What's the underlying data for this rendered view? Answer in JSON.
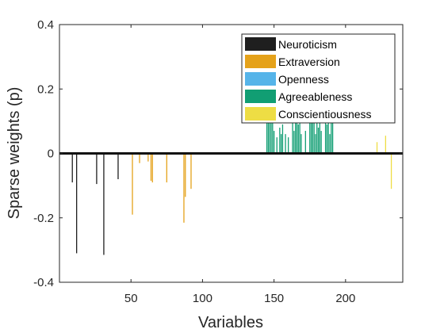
{
  "chart_data": {
    "type": "bar",
    "title": "",
    "xlabel": "Variables",
    "ylabel": "Sparse weights (p)",
    "xlim": [
      0,
      240
    ],
    "ylim": [
      -0.4,
      0.4
    ],
    "xticks": [
      50,
      100,
      150,
      200
    ],
    "yticks": [
      -0.4,
      -0.2,
      0,
      0.2,
      0.4
    ],
    "ytick_labels": [
      "-0.4",
      "-0.2",
      "0",
      "0.2",
      "0.4"
    ],
    "grid": false,
    "legend_position": "top-right",
    "series": [
      {
        "name": "Neuroticism",
        "color": "#1f1f1f",
        "x": [
          9,
          12,
          26,
          31,
          41
        ],
        "values": [
          -0.09,
          -0.31,
          -0.095,
          -0.315,
          -0.08
        ]
      },
      {
        "name": "Extraversion",
        "color": "#e5a21a",
        "x": [
          51,
          56,
          62,
          64,
          65,
          75,
          87,
          88,
          92
        ],
        "values": [
          -0.19,
          -0.03,
          -0.025,
          -0.085,
          -0.09,
          -0.09,
          -0.215,
          -0.135,
          -0.11
        ]
      },
      {
        "name": "Openness",
        "color": "#55b4e9",
        "x": [],
        "values": []
      },
      {
        "name": "Agreeableness",
        "color": "#119e73",
        "x": [
          145,
          146,
          147,
          148,
          149,
          150,
          152,
          154,
          155,
          156,
          158,
          160,
          163,
          164,
          165,
          166,
          167,
          168,
          169,
          172,
          175,
          176,
          177,
          178,
          179,
          180,
          181,
          182,
          183,
          186,
          187,
          188,
          189,
          190,
          191
        ],
        "values": [
          0.12,
          0.11,
          0.1,
          0.1,
          0.13,
          0.07,
          0.05,
          0.08,
          0.06,
          0.09,
          0.06,
          0.05,
          0.11,
          0.07,
          0.12,
          0.14,
          0.09,
          0.11,
          0.06,
          0.07,
          0.12,
          0.1,
          0.13,
          0.11,
          0.06,
          0.14,
          0.08,
          0.1,
          0.07,
          0.12,
          0.09,
          0.11,
          0.06,
          0.13,
          0.1
        ]
      },
      {
        "name": "Conscientiousness",
        "color": "#eedd44",
        "x": [
          222,
          228,
          232
        ],
        "values": [
          0.035,
          0.055,
          -0.11
        ]
      }
    ]
  }
}
